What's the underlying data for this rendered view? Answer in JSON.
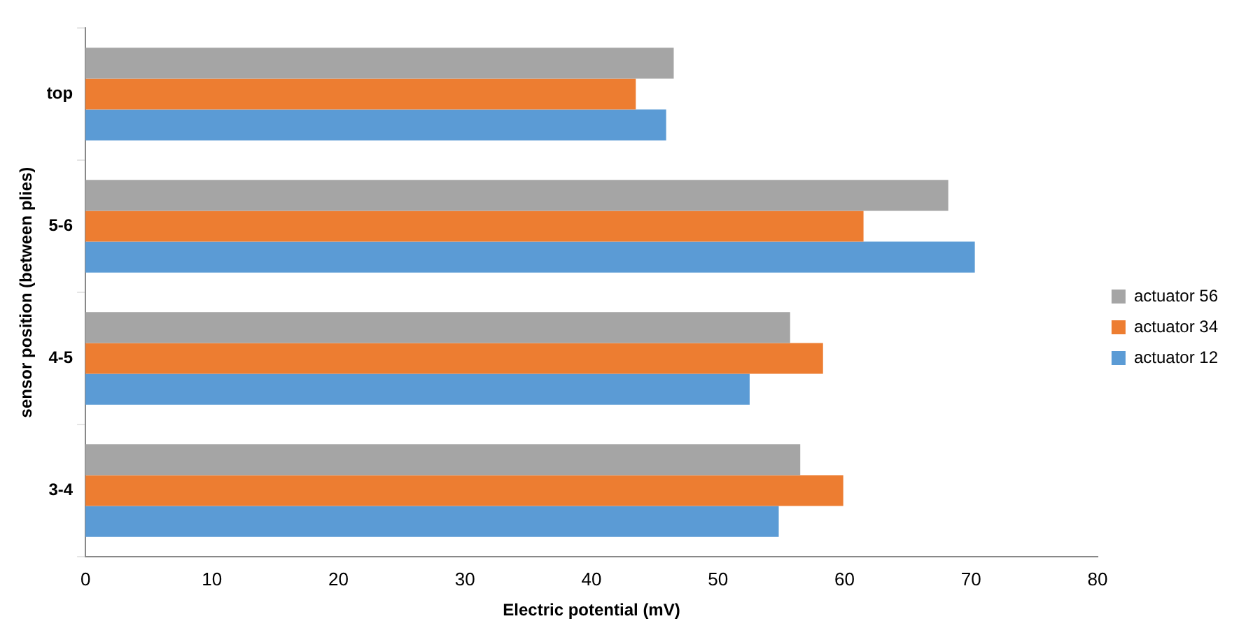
{
  "chart_data": {
    "type": "bar",
    "orientation": "horizontal",
    "xlabel": "Electric potential (mV)",
    "ylabel": "sensor position (between plies)",
    "categories": [
      "top",
      "5-6",
      "4-5",
      "3-4"
    ],
    "series": [
      {
        "name": "actuator 56",
        "color": "#a5a5a5",
        "values": [
          46.5,
          68.2,
          55.7,
          56.5
        ]
      },
      {
        "name": "actuator 34",
        "color": "#ed7d31",
        "values": [
          43.5,
          61.5,
          58.3,
          59.9
        ]
      },
      {
        "name": "actuator 12",
        "color": "#5b9bd5",
        "values": [
          45.9,
          70.3,
          52.5,
          54.8
        ]
      }
    ],
    "xlim": [
      0,
      80
    ],
    "xticks": [
      0,
      10,
      20,
      30,
      40,
      50,
      60,
      70,
      80
    ],
    "grid": false,
    "legend": "right"
  }
}
